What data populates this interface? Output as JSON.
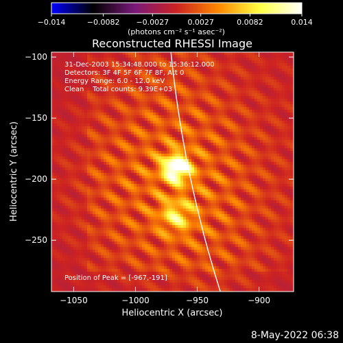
{
  "chart_data": {
    "type": "heatmap",
    "title": "Reconstructed RHESSI Image",
    "xlabel": "Heliocentric X (arcsec)",
    "ylabel": "Heliocentric Y (arcsec)",
    "xlim": [
      -1068,
      -872
    ],
    "ylim": [
      -292,
      -96
    ],
    "xticks": [
      -1050,
      -1000,
      -950,
      -900
    ],
    "yticks": [
      -250,
      -200,
      -150,
      -100
    ],
    "xtick_labels": [
      "−1050",
      "−1000",
      "−950",
      "−900"
    ],
    "ytick_labels": [
      "−250",
      "−200",
      "−150",
      "−100"
    ],
    "colorbar": {
      "range": [
        -0.014,
        0.014
      ],
      "ticks": [
        -0.014,
        -0.0082,
        -0.0027,
        0.0027,
        0.0082,
        0.014
      ],
      "tick_labels": [
        "−0.014",
        "−0.0082",
        "−0.0027",
        "0.0027",
        "0.0082",
        "0.014"
      ],
      "unit_label": "(photons cm⁻² s⁻¹ asec⁻²)",
      "colormap": [
        "#0000ff",
        "#000000",
        "#7a1a7a",
        "#cc2222",
        "#ff8800",
        "#ffff44",
        "#ffffff"
      ]
    },
    "info_lines": [
      "31-Dec-2003 15:34:48.000 to 15:36:12.000",
      "Detectors: 3F 4F 5F 6F 7F 8F, Att 0",
      "Energy Range: 6.0 - 12.0 keV",
      "Clean    Total counts: 9.39E+03"
    ],
    "peak_label": "Position of Peak = [-967,-191]",
    "peak_position": [
      -967,
      -191
    ],
    "sources": [
      {
        "x": -967,
        "y": -191,
        "peak": 0.014
      },
      {
        "x": -967,
        "y": -230,
        "peak": 0.0065
      }
    ],
    "limb": {
      "color": "#ffffff"
    }
  },
  "footer": {
    "timestamp": "8-May-2022 06:38"
  }
}
